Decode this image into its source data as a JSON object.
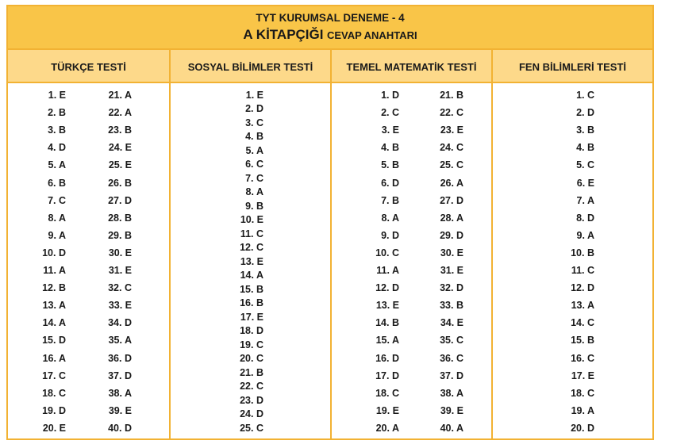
{
  "title": {
    "line1": "TYT KURUMSAL DENEME - 4",
    "line2_main": "A KİTAPÇIĞI",
    "line2_sub": "CEVAP ANAHTARI"
  },
  "headers": [
    "TÜRKÇE TESTİ",
    "SOSYAL BİLİMLER TESTİ",
    "TEMEL MATEMATİK TESTİ",
    "FEN BİLİMLERİ TESTİ"
  ],
  "turkce": [
    "1. E",
    "2. B",
    "3. B",
    "4. D",
    "5. A",
    "6. B",
    "7. C",
    "8. A",
    "9. A",
    "10. D",
    "11. A",
    "12. B",
    "13. A",
    "14. A",
    "15. D",
    "16. A",
    "17. C",
    "18. C",
    "19. D",
    "20. E",
    "21. A",
    "22. A",
    "23. B",
    "24. E",
    "25. E",
    "26. B",
    "27. D",
    "28. B",
    "29. B",
    "30. E",
    "31. E",
    "32. C",
    "33. E",
    "34. D",
    "35. A",
    "36. D",
    "37. D",
    "38. A",
    "39. E",
    "40. D"
  ],
  "sosyal": [
    "1. E",
    "2. D",
    "3. C",
    "4. B",
    "5. A",
    "6. C",
    "7. C",
    "8. A",
    "9. B",
    "10. E",
    "11. C",
    "12. C",
    "13. E",
    "14. A",
    "15. B",
    "16. B",
    "17. E",
    "18. D",
    "19. C",
    "20. C",
    "21. B",
    "22. C",
    "23. D",
    "24. D",
    "25. C"
  ],
  "matematik": [
    "1. D",
    "2. C",
    "3. E",
    "4. B",
    "5. B",
    "6. D",
    "7. B",
    "8. A",
    "9. D",
    "10. C",
    "11. A",
    "12. D",
    "13. E",
    "14. B",
    "15. A",
    "16. D",
    "17. D",
    "18. C",
    "19. E",
    "20. A",
    "21. B",
    "22. C",
    "23. E",
    "24. C",
    "25. C",
    "26. A",
    "27. D",
    "28. A",
    "29. D",
    "30. E",
    "31. E",
    "32. D",
    "33. B",
    "34. E",
    "35. C",
    "36. C",
    "37. D",
    "38. A",
    "39. E",
    "40. A"
  ],
  "fen": [
    "1. C",
    "2. D",
    "3. B",
    "4. B",
    "5. C",
    "6. E",
    "7. A",
    "8. D",
    "9. A",
    "10. B",
    "11. C",
    "12. D",
    "13. A",
    "14. C",
    "15. B",
    "16. C",
    "17. E",
    "18. C",
    "19. A",
    "20. D"
  ]
}
